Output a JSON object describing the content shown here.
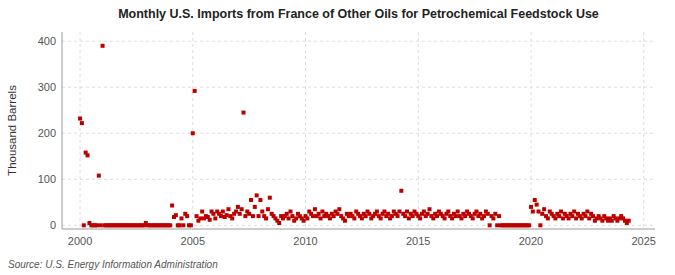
{
  "chart_data": {
    "type": "scatter",
    "title": "Monthly U.S. Imports from France of Other Oils for Petrochemical Feedstock Use",
    "ylabel": "Thousand Barrels",
    "source": "Source: U.S. Energy Information Administration",
    "xlim": [
      1999.2,
      2025.5
    ],
    "ylim": [
      -8,
      420
    ],
    "xticks": [
      2000,
      2005,
      2010,
      2015,
      2020,
      2025
    ],
    "yticks": [
      0,
      100,
      200,
      300,
      400
    ],
    "grid": true,
    "color": "#BB0000",
    "marker": "square",
    "x": [
      2000.0,
      2000.083,
      2000.167,
      2000.25,
      2000.333,
      2000.417,
      2000.5,
      2000.583,
      2000.667,
      2000.75,
      2000.833,
      2000.917,
      2001.0,
      2001.083,
      2001.167,
      2001.25,
      2001.333,
      2001.417,
      2001.5,
      2001.583,
      2001.667,
      2001.75,
      2001.833,
      2001.917,
      2002.0,
      2002.083,
      2002.167,
      2002.25,
      2002.333,
      2002.417,
      2002.5,
      2002.583,
      2002.667,
      2002.75,
      2002.833,
      2002.917,
      2003.0,
      2003.083,
      2003.167,
      2003.25,
      2003.333,
      2003.417,
      2003.5,
      2003.583,
      2003.667,
      2003.75,
      2003.833,
      2003.917,
      2004.0,
      2004.083,
      2004.167,
      2004.25,
      2004.333,
      2004.417,
      2004.5,
      2004.583,
      2004.667,
      2004.75,
      2004.833,
      2004.917,
      2005.0,
      2005.083,
      2005.167,
      2005.25,
      2005.333,
      2005.417,
      2005.5,
      2005.583,
      2005.667,
      2005.75,
      2005.833,
      2005.917,
      2006.0,
      2006.083,
      2006.167,
      2006.25,
      2006.333,
      2006.417,
      2006.5,
      2006.583,
      2006.667,
      2006.75,
      2006.833,
      2006.917,
      2007.0,
      2007.083,
      2007.167,
      2007.25,
      2007.333,
      2007.417,
      2007.5,
      2007.583,
      2007.667,
      2007.75,
      2007.833,
      2007.917,
      2008.0,
      2008.083,
      2008.167,
      2008.25,
      2008.333,
      2008.417,
      2008.5,
      2008.583,
      2008.667,
      2008.75,
      2008.833,
      2008.917,
      2009.0,
      2009.083,
      2009.167,
      2009.25,
      2009.333,
      2009.417,
      2009.5,
      2009.583,
      2009.667,
      2009.75,
      2009.833,
      2009.917,
      2010.0,
      2010.083,
      2010.167,
      2010.25,
      2010.333,
      2010.417,
      2010.5,
      2010.583,
      2010.667,
      2010.75,
      2010.833,
      2010.917,
      2011.0,
      2011.083,
      2011.167,
      2011.25,
      2011.333,
      2011.417,
      2011.5,
      2011.583,
      2011.667,
      2011.75,
      2011.833,
      2011.917,
      2012.0,
      2012.083,
      2012.167,
      2012.25,
      2012.333,
      2012.417,
      2012.5,
      2012.583,
      2012.667,
      2012.75,
      2012.833,
      2012.917,
      2013.0,
      2013.083,
      2013.167,
      2013.25,
      2013.333,
      2013.417,
      2013.5,
      2013.583,
      2013.667,
      2013.75,
      2013.833,
      2013.917,
      2014.0,
      2014.083,
      2014.167,
      2014.25,
      2014.333,
      2014.417,
      2014.5,
      2014.583,
      2014.667,
      2014.75,
      2014.833,
      2014.917,
      2015.0,
      2015.083,
      2015.167,
      2015.25,
      2015.333,
      2015.417,
      2015.5,
      2015.583,
      2015.667,
      2015.75,
      2015.833,
      2015.917,
      2016.0,
      2016.083,
      2016.167,
      2016.25,
      2016.333,
      2016.417,
      2016.5,
      2016.583,
      2016.667,
      2016.75,
      2016.833,
      2016.917,
      2017.0,
      2017.083,
      2017.167,
      2017.25,
      2017.333,
      2017.417,
      2017.5,
      2017.583,
      2017.667,
      2017.75,
      2017.833,
      2017.917,
      2018.0,
      2018.083,
      2018.167,
      2018.25,
      2018.333,
      2018.417,
      2018.5,
      2018.583,
      2018.667,
      2018.75,
      2018.833,
      2018.917,
      2019.0,
      2019.083,
      2019.167,
      2019.25,
      2019.333,
      2019.417,
      2019.5,
      2019.583,
      2019.667,
      2019.75,
      2019.833,
      2019.917,
      2020.0,
      2020.083,
      2020.167,
      2020.25,
      2020.333,
      2020.417,
      2020.5,
      2020.583,
      2020.667,
      2020.75,
      2020.833,
      2020.917,
      2021.0,
      2021.083,
      2021.167,
      2021.25,
      2021.333,
      2021.417,
      2021.5,
      2021.583,
      2021.667,
      2021.75,
      2021.833,
      2021.917,
      2022.0,
      2022.083,
      2022.167,
      2022.25,
      2022.333,
      2022.417,
      2022.5,
      2022.583,
      2022.667,
      2022.75,
      2022.833,
      2022.917,
      2023.0,
      2023.083,
      2023.167,
      2023.25,
      2023.333,
      2023.417,
      2023.5,
      2023.583,
      2023.667,
      2023.75,
      2023.833,
      2023.917,
      2024.0,
      2024.083,
      2024.167,
      2024.25,
      2024.333
    ],
    "values": [
      232,
      222,
      0,
      158,
      152,
      5,
      0,
      0,
      0,
      0,
      108,
      0,
      390,
      0,
      0,
      0,
      0,
      0,
      0,
      0,
      0,
      0,
      0,
      0,
      0,
      0,
      0,
      0,
      0,
      0,
      0,
      0,
      0,
      0,
      0,
      5,
      0,
      0,
      0,
      0,
      0,
      0,
      0,
      0,
      0,
      0,
      0,
      0,
      0,
      43,
      18,
      22,
      0,
      0,
      15,
      0,
      25,
      20,
      0,
      0,
      200,
      292,
      20,
      10,
      15,
      30,
      15,
      20,
      18,
      12,
      30,
      25,
      15,
      30,
      25,
      20,
      30,
      18,
      22,
      35,
      20,
      15,
      25,
      30,
      40,
      25,
      35,
      245,
      20,
      30,
      25,
      55,
      20,
      40,
      65,
      20,
      55,
      30,
      20,
      15,
      35,
      60,
      25,
      20,
      15,
      10,
      5,
      20,
      15,
      20,
      25,
      15,
      30,
      20,
      10,
      15,
      25,
      20,
      15,
      10,
      20,
      15,
      30,
      25,
      20,
      35,
      20,
      25,
      15,
      30,
      20,
      25,
      20,
      15,
      25,
      20,
      30,
      25,
      35,
      20,
      15,
      10,
      25,
      20,
      25,
      20,
      15,
      30,
      25,
      20,
      15,
      25,
      20,
      30,
      25,
      15,
      20,
      25,
      30,
      20,
      15,
      25,
      30,
      20,
      25,
      15,
      20,
      30,
      25,
      20,
      30,
      75,
      25,
      20,
      30,
      15,
      25,
      20,
      30,
      25,
      20,
      15,
      25,
      30,
      20,
      25,
      35,
      20,
      15,
      25,
      20,
      30,
      25,
      20,
      15,
      25,
      30,
      20,
      15,
      25,
      20,
      30,
      20,
      15,
      25,
      20,
      30,
      25,
      20,
      15,
      25,
      30,
      20,
      25,
      15,
      20,
      30,
      25,
      0,
      20,
      15,
      25,
      0,
      20,
      0,
      0,
      0,
      0,
      0,
      0,
      0,
      0,
      0,
      0,
      0,
      0,
      0,
      0,
      0,
      0,
      40,
      30,
      55,
      45,
      30,
      0,
      25,
      35,
      20,
      15,
      30,
      25,
      20,
      15,
      25,
      20,
      30,
      15,
      25,
      20,
      15,
      25,
      20,
      30,
      15,
      25,
      20,
      15,
      25,
      20,
      30,
      15,
      25,
      20,
      10,
      15,
      20,
      15,
      10,
      20,
      15,
      10,
      15,
      10,
      20,
      15,
      10,
      15,
      20,
      15,
      10,
      5,
      10
    ]
  }
}
